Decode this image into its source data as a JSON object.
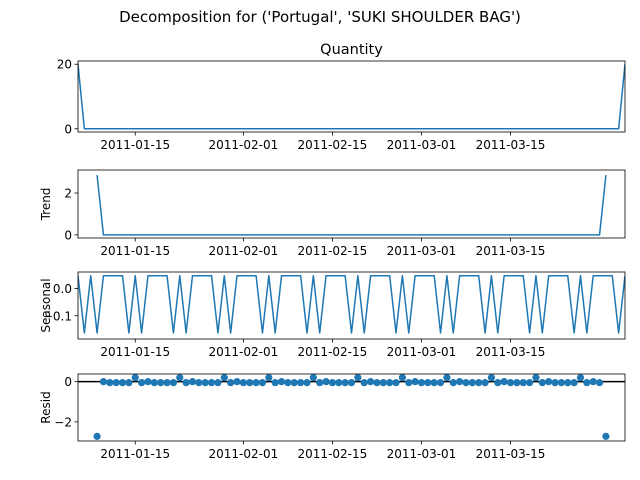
{
  "figure": {
    "suptitle": "Decomposition for ('Portugal', 'SUKI  SHOULDER BAG')"
  },
  "colors": {
    "series": "#1f77b4",
    "axis": "#000000",
    "zero_line": "#000000"
  },
  "chart_data": [
    {
      "id": "observed",
      "type": "line",
      "title": "Quantity",
      "ylabel": "",
      "xlim": [
        "2011-01-06",
        "2011-04-02"
      ],
      "ylim": [
        -1.0,
        21.0
      ],
      "yticks": [
        0,
        20
      ],
      "ytick_labels": [
        "0",
        "20"
      ],
      "xtick_dates": [
        "2011-01-15",
        "2011-02-01",
        "2011-02-15",
        "2011-03-01",
        "2011-03-15"
      ],
      "series": [
        {
          "points": [
            [
              "2011-01-06",
              20
            ],
            [
              "2011-01-07",
              0
            ],
            [
              "2011-01-08",
              0
            ],
            [
              "2011-01-09",
              0
            ],
            [
              "2011-03-31",
              0
            ],
            [
              "2011-04-01",
              0
            ],
            [
              "2011-04-02",
              20
            ]
          ]
        }
      ]
    },
    {
      "id": "trend",
      "type": "line",
      "ylabel": "Trend",
      "xlim": [
        "2011-01-06",
        "2011-04-02"
      ],
      "ylim": [
        -0.15,
        3.1
      ],
      "yticks": [
        0,
        2
      ],
      "ytick_labels": [
        "0",
        "2"
      ],
      "xtick_dates": [
        "2011-01-15",
        "2011-02-01",
        "2011-02-15",
        "2011-03-01",
        "2011-03-15"
      ],
      "series": [
        {
          "points": [
            [
              "2011-01-09",
              2.86
            ],
            [
              "2011-01-10",
              0
            ],
            [
              "2011-01-11",
              0
            ],
            [
              "2011-03-28",
              0
            ],
            [
              "2011-03-29",
              0
            ],
            [
              "2011-03-30",
              2.86
            ]
          ]
        }
      ]
    },
    {
      "id": "seasonal",
      "type": "line",
      "ylabel": "Seasonal",
      "xlim": [
        "2011-01-06",
        "2011-04-02"
      ],
      "ylim": [
        -0.185,
        0.06
      ],
      "yticks": [
        0.0,
        -0.1
      ],
      "ytick_labels": [
        "0.0",
        "−0.1"
      ],
      "xtick_dates": [
        "2011-01-15",
        "2011-02-01",
        "2011-02-15",
        "2011-03-01",
        "2011-03-15"
      ],
      "period_start": "2011-01-06",
      "weekly_pattern": [
        0.0465,
        -0.1629,
        0.0465,
        -0.1629,
        0.0465,
        0.0465,
        0.0465
      ]
    },
    {
      "id": "resid",
      "type": "scatter",
      "ylabel": "Resid",
      "xlim": [
        "2011-01-06",
        "2011-04-02"
      ],
      "ylim": [
        -2.95,
        0.38
      ],
      "yticks": [
        0,
        -2
      ],
      "ytick_labels": [
        "0",
        "−2"
      ],
      "xtick_dates": [
        "2011-01-15",
        "2011-02-01",
        "2011-02-15",
        "2011-03-01",
        "2011-03-15"
      ],
      "reference_line": 0,
      "start": "2011-01-09",
      "end": "2011-03-30",
      "weekly_pattern": [
        -2.7,
        0.0,
        -0.05,
        -0.05,
        -0.05,
        -0.05,
        0.2
      ],
      "outliers": [
        [
          "2011-01-09",
          -2.72
        ],
        [
          "2011-03-30",
          -2.72
        ]
      ]
    }
  ]
}
